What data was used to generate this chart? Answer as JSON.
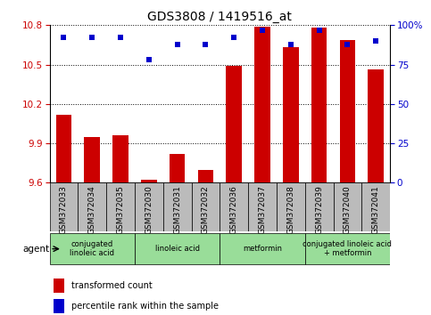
{
  "title": "GDS3808 / 1419516_at",
  "samples": [
    "GSM372033",
    "GSM372034",
    "GSM372035",
    "GSM372030",
    "GSM372031",
    "GSM372032",
    "GSM372036",
    "GSM372037",
    "GSM372038",
    "GSM372039",
    "GSM372040",
    "GSM372041"
  ],
  "transformed_counts": [
    10.12,
    9.95,
    9.96,
    9.62,
    9.82,
    9.7,
    10.49,
    10.79,
    10.63,
    10.78,
    10.69,
    10.46
  ],
  "percentile_ranks": [
    92,
    92,
    92,
    78,
    88,
    88,
    92,
    97,
    88,
    97,
    88,
    90
  ],
  "ylim_left": [
    9.6,
    10.8
  ],
  "ylim_right": [
    0,
    100
  ],
  "yticks_left": [
    9.6,
    9.9,
    10.2,
    10.5,
    10.8
  ],
  "yticks_right": [
    0,
    25,
    50,
    75,
    100
  ],
  "bar_color": "#cc0000",
  "dot_color": "#0000cc",
  "bar_bottom": 9.6,
  "agent_groups": [
    {
      "label": "conjugated\nlinoleic acid",
      "start": 0,
      "end": 3,
      "color": "#99dd99"
    },
    {
      "label": "linoleic acid",
      "start": 3,
      "end": 6,
      "color": "#99dd99"
    },
    {
      "label": "metformin",
      "start": 6,
      "end": 9,
      "color": "#99dd99"
    },
    {
      "label": "conjugated linoleic acid\n+ metformin",
      "start": 9,
      "end": 12,
      "color": "#99dd99"
    }
  ],
  "legend_red_label": "transformed count",
  "legend_blue_label": "percentile rank within the sample",
  "tick_label_color_left": "#cc0000",
  "tick_label_color_right": "#0000cc",
  "sample_bg_color": "#bbbbbb",
  "agent_label": "agent",
  "bar_width": 0.55
}
